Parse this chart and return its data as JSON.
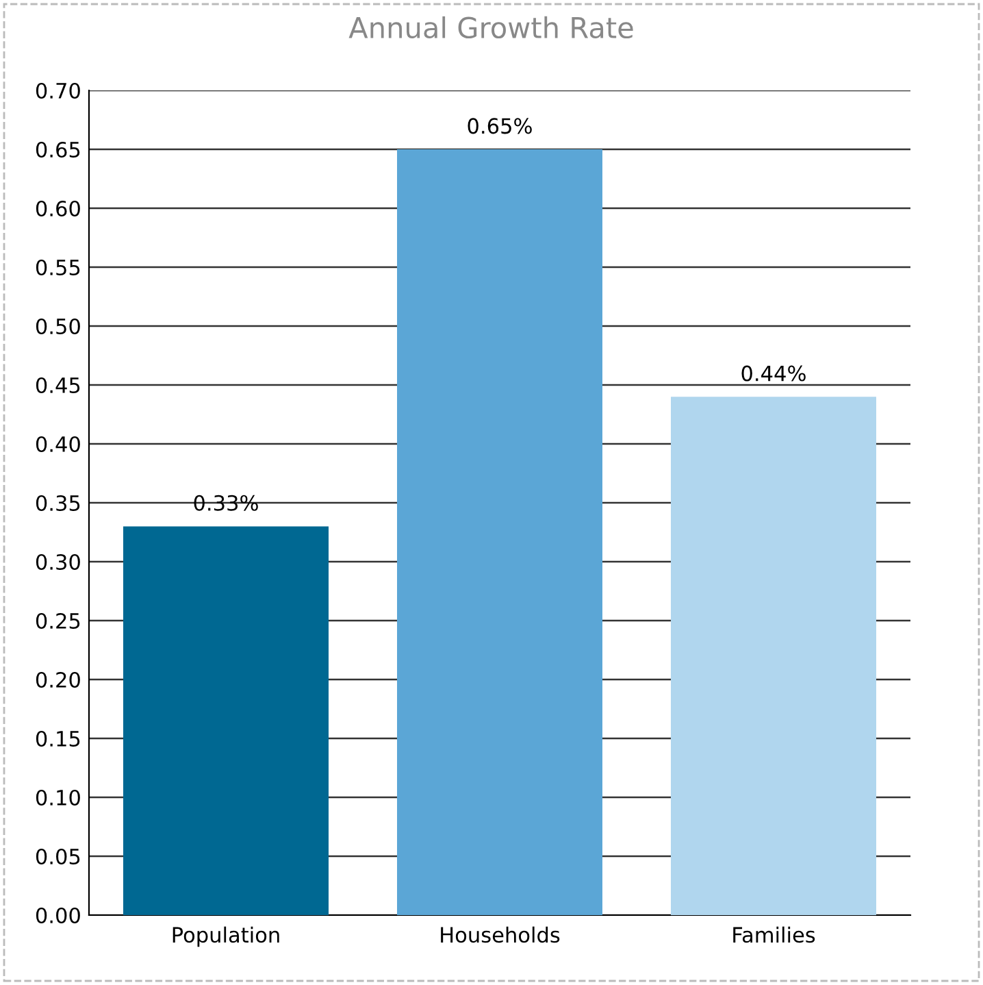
{
  "chart_data": {
    "type": "bar",
    "title": "Annual Growth Rate",
    "categories": [
      "Population",
      "Households",
      "Families"
    ],
    "values": [
      0.33,
      0.65,
      0.44
    ],
    "colors": [
      "#006892",
      "#5ba6d6",
      "#b0d6ee"
    ],
    "value_labels": [
      "0.33%",
      "0.65%",
      "0.44%"
    ],
    "ylim": [
      0,
      0.7
    ],
    "yticks": [
      "0.00",
      "0.05",
      "0.10",
      "0.15",
      "0.20",
      "0.25",
      "0.30",
      "0.35",
      "0.40",
      "0.45",
      "0.50",
      "0.55",
      "0.60",
      "0.65",
      "0.70"
    ],
    "grid": "y",
    "legend": false
  }
}
